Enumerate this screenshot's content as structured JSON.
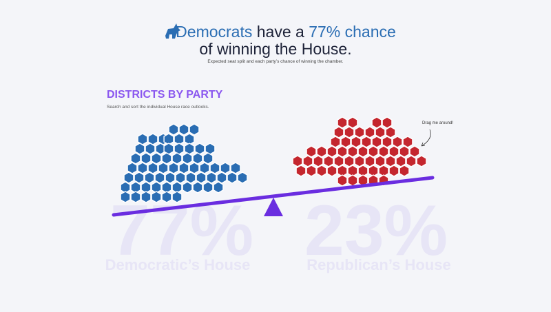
{
  "header": {
    "title_party": "Democrats",
    "title_mid": "have a",
    "title_chance": "77% chance",
    "title_end": "of winning the House.",
    "subtitle": "Expected seat split and each party’s chance of winning the chamber."
  },
  "section": {
    "title": "DISTRICTS BY PARTY",
    "description": "Search and sort the individual House race outlooks.",
    "annotation": "Drag me around!"
  },
  "outcomes": [
    {
      "percent": "77%",
      "label": "Democratic’s House"
    },
    {
      "percent": "23%",
      "label": "Republican’s House"
    }
  ]
}
